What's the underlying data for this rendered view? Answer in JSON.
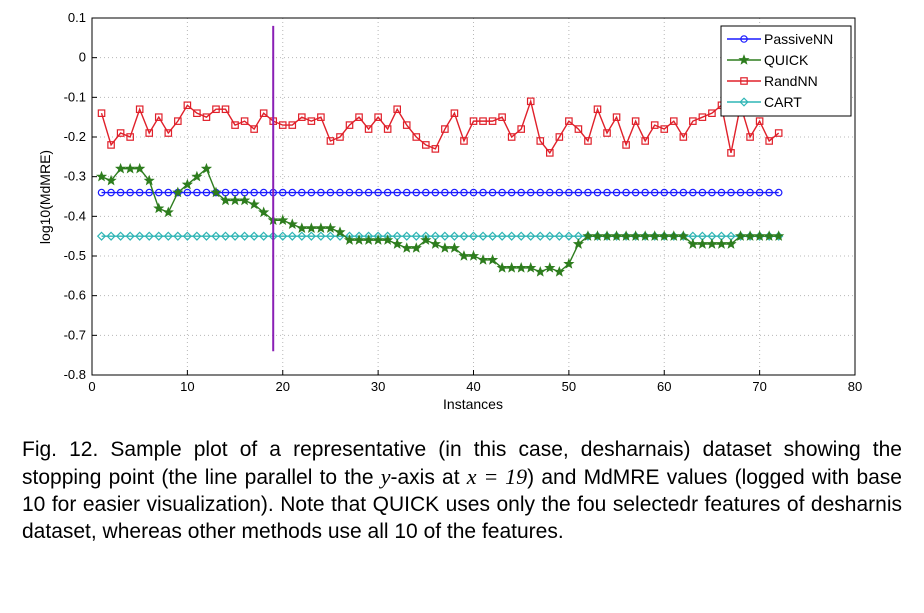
{
  "chart_data": {
    "type": "line",
    "title": "",
    "xlabel": "Instances",
    "ylabel": "log10(MdMRE)",
    "xlim": [
      0,
      80
    ],
    "ylim": [
      -0.8,
      0.1
    ],
    "xticks": [
      "0",
      "10",
      "20",
      "30",
      "40",
      "50",
      "60",
      "70",
      "80"
    ],
    "yticks": [
      "0.1",
      "0",
      "-0.1",
      "-0.2",
      "-0.3",
      "-0.4",
      "-0.5",
      "-0.6",
      "-0.7",
      "-0.8"
    ],
    "grid": true,
    "legend_position": "top-right",
    "x": [
      1,
      2,
      3,
      4,
      5,
      6,
      7,
      8,
      9,
      10,
      11,
      12,
      13,
      14,
      15,
      16,
      17,
      18,
      19,
      20,
      21,
      22,
      23,
      24,
      25,
      26,
      27,
      28,
      29,
      30,
      31,
      32,
      33,
      34,
      35,
      36,
      37,
      38,
      39,
      40,
      41,
      42,
      43,
      44,
      45,
      46,
      47,
      48,
      49,
      50,
      51,
      52,
      53,
      54,
      55,
      56,
      57,
      58,
      59,
      60,
      61,
      62,
      63,
      64,
      65,
      66,
      67,
      68,
      69,
      70,
      71,
      72
    ],
    "series": [
      {
        "name": "PassiveNN",
        "color": "#1a1aff",
        "marker": "circle",
        "values": [
          -0.34,
          -0.34,
          -0.34,
          -0.34,
          -0.34,
          -0.34,
          -0.34,
          -0.34,
          -0.34,
          -0.34,
          -0.34,
          -0.34,
          -0.34,
          -0.34,
          -0.34,
          -0.34,
          -0.34,
          -0.34,
          -0.34,
          -0.34,
          -0.34,
          -0.34,
          -0.34,
          -0.34,
          -0.34,
          -0.34,
          -0.34,
          -0.34,
          -0.34,
          -0.34,
          -0.34,
          -0.34,
          -0.34,
          -0.34,
          -0.34,
          -0.34,
          -0.34,
          -0.34,
          -0.34,
          -0.34,
          -0.34,
          -0.34,
          -0.34,
          -0.34,
          -0.34,
          -0.34,
          -0.34,
          -0.34,
          -0.34,
          -0.34,
          -0.34,
          -0.34,
          -0.34,
          -0.34,
          -0.34,
          -0.34,
          -0.34,
          -0.34,
          -0.34,
          -0.34,
          -0.34,
          -0.34,
          -0.34,
          -0.34,
          -0.34,
          -0.34,
          -0.34,
          -0.34,
          -0.34,
          -0.34,
          -0.34,
          -0.34
        ]
      },
      {
        "name": "QUICK",
        "color": "#2e7d1e",
        "marker": "star",
        "values": [
          -0.3,
          -0.31,
          -0.28,
          -0.28,
          -0.28,
          -0.31,
          -0.38,
          -0.39,
          -0.34,
          -0.32,
          -0.3,
          -0.28,
          -0.34,
          -0.36,
          -0.36,
          -0.36,
          -0.37,
          -0.39,
          -0.41,
          -0.41,
          -0.42,
          -0.43,
          -0.43,
          -0.43,
          -0.43,
          -0.44,
          -0.46,
          -0.46,
          -0.46,
          -0.46,
          -0.46,
          -0.47,
          -0.48,
          -0.48,
          -0.46,
          -0.47,
          -0.48,
          -0.48,
          -0.5,
          -0.5,
          -0.51,
          -0.51,
          -0.53,
          -0.53,
          -0.53,
          -0.53,
          -0.54,
          -0.53,
          -0.54,
          -0.52,
          -0.47,
          -0.45,
          -0.45,
          -0.45,
          -0.45,
          -0.45,
          -0.45,
          -0.45,
          -0.45,
          -0.45,
          -0.45,
          -0.45,
          -0.47,
          -0.47,
          -0.47,
          -0.47,
          -0.47,
          -0.45,
          -0.45,
          -0.45,
          -0.45,
          -0.45
        ]
      },
      {
        "name": "RandNN",
        "color": "#e0202a",
        "marker": "square",
        "values": [
          -0.14,
          -0.22,
          -0.19,
          -0.2,
          -0.13,
          -0.19,
          -0.15,
          -0.19,
          -0.16,
          -0.12,
          -0.14,
          -0.15,
          -0.13,
          -0.13,
          -0.17,
          -0.16,
          -0.18,
          -0.14,
          -0.16,
          -0.17,
          -0.17,
          -0.15,
          -0.16,
          -0.15,
          -0.21,
          -0.2,
          -0.17,
          -0.15,
          -0.18,
          -0.15,
          -0.18,
          -0.13,
          -0.17,
          -0.2,
          -0.22,
          -0.23,
          -0.18,
          -0.14,
          -0.21,
          -0.16,
          -0.16,
          -0.16,
          -0.15,
          -0.2,
          -0.18,
          -0.11,
          -0.21,
          -0.24,
          -0.2,
          -0.16,
          -0.18,
          -0.21,
          -0.13,
          -0.19,
          -0.15,
          -0.22,
          -0.16,
          -0.21,
          -0.17,
          -0.18,
          -0.16,
          -0.2,
          -0.16,
          -0.15,
          -0.14,
          -0.12,
          -0.24,
          -0.12,
          -0.2,
          -0.16,
          -0.21,
          -0.19
        ]
      },
      {
        "name": "CART",
        "color": "#2fb5b5",
        "marker": "diamond",
        "values": [
          -0.45,
          -0.45,
          -0.45,
          -0.45,
          -0.45,
          -0.45,
          -0.45,
          -0.45,
          -0.45,
          -0.45,
          -0.45,
          -0.45,
          -0.45,
          -0.45,
          -0.45,
          -0.45,
          -0.45,
          -0.45,
          -0.45,
          -0.45,
          -0.45,
          -0.45,
          -0.45,
          -0.45,
          -0.45,
          -0.45,
          -0.45,
          -0.45,
          -0.45,
          -0.45,
          -0.45,
          -0.45,
          -0.45,
          -0.45,
          -0.45,
          -0.45,
          -0.45,
          -0.45,
          -0.45,
          -0.45,
          -0.45,
          -0.45,
          -0.45,
          -0.45,
          -0.45,
          -0.45,
          -0.45,
          -0.45,
          -0.45,
          -0.45,
          -0.45,
          -0.45,
          -0.45,
          -0.45,
          -0.45,
          -0.45,
          -0.45,
          -0.45,
          -0.45,
          -0.45,
          -0.45,
          -0.45,
          -0.45,
          -0.45,
          -0.45,
          -0.45,
          -0.45,
          -0.45,
          -0.45,
          -0.45,
          -0.45,
          -0.45
        ]
      }
    ],
    "vertical_line": {
      "x": 19,
      "y_range": [
        -0.74,
        0.08
      ],
      "color": "#8a1fb5"
    }
  },
  "caption": {
    "part1": "Fig. 12. Sample plot of a representative (in this case, desharnais) dataset showing the stopping point (the line parallel to the ",
    "var_y": "y",
    "part2": "-axis at ",
    "var_eq": "x = 19",
    "part3": ") and MdMRE values (logged with base 10 for easier visualization). Note that QUICK uses only the fou selectedr features of desharnis dataset, whereas other methods use all 10 of the features."
  }
}
